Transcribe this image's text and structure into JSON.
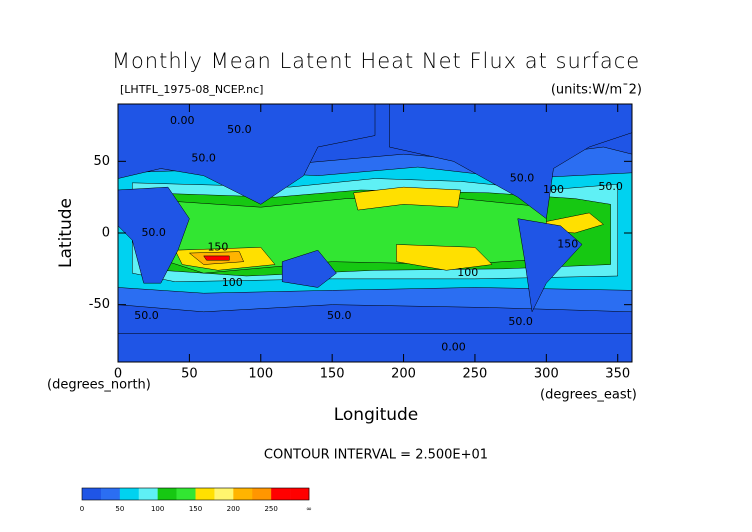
{
  "chart_data": {
    "type": "contour",
    "title": "Monthly Mean Latent Heat Net Flux at surface",
    "subtitle": "[LHTFL_1975-08_NCEP.nc]",
    "units": "(units:W/m¯2)",
    "xlabel": "Longitude",
    "ylabel": "Latitude",
    "xunit_label": "(degrees_east)",
    "yunit_label": "(degrees_north)",
    "contour_interval": "CONTOUR INTERVAL = 2.500E+01",
    "xlim": [
      0,
      360
    ],
    "xticks": [
      0,
      50,
      100,
      150,
      200,
      250,
      300,
      350
    ],
    "ylim": [
      -90,
      90
    ],
    "yticks": [
      -50,
      0,
      50
    ],
    "colorbar": {
      "colors": [
        "#1f55e6",
        "#2b6ef2",
        "#00d2f0",
        "#5ff0f5",
        "#16c812",
        "#32e632",
        "#ffe000",
        "#fff56e",
        "#ffb400",
        "#ff9600",
        "#ff0000",
        "#ff0000"
      ],
      "ticks": [
        0,
        50,
        100,
        150,
        200,
        250
      ],
      "top_label": "∞"
    },
    "annotations": [
      {
        "text": "0.00",
        "x": 45,
        "y": 78
      },
      {
        "text": "50.0",
        "x": 85,
        "y": 72
      },
      {
        "text": "50.0",
        "x": 60,
        "y": 52
      },
      {
        "text": "150",
        "x": 70,
        "y": -10
      },
      {
        "text": "100",
        "x": 80,
        "y": -35
      },
      {
        "text": "50.0",
        "x": 20,
        "y": -58
      },
      {
        "text": "50.0",
        "x": 155,
        "y": -58
      },
      {
        "text": "50.0",
        "x": 283,
        "y": 38
      },
      {
        "text": "100",
        "x": 305,
        "y": 30
      },
      {
        "text": "150",
        "x": 315,
        "y": -8
      },
      {
        "text": "100",
        "x": 245,
        "y": -28
      },
      {
        "text": "50.0",
        "x": 282,
        "y": -62
      },
      {
        "text": "0.00",
        "x": 235,
        "y": -80
      },
      {
        "text": "50.0",
        "x": 345,
        "y": 32
      },
      {
        "text": "50.0",
        "x": 25,
        "y": 0
      }
    ]
  }
}
